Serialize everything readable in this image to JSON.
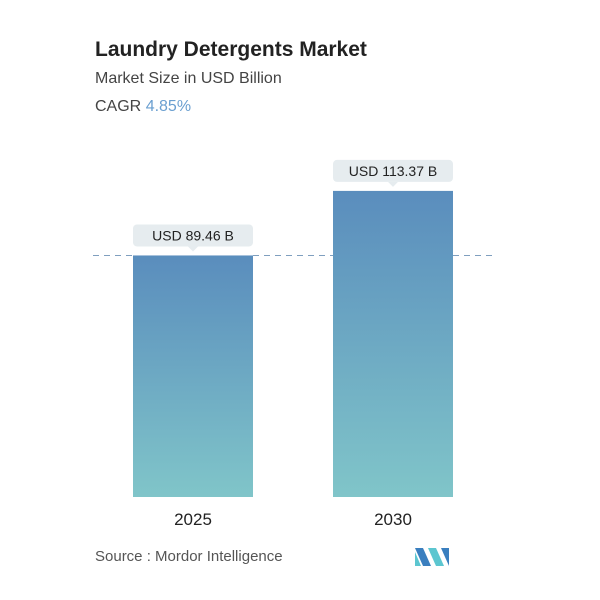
{
  "chart_data": {
    "type": "bar",
    "title": "Laundry Detergents Market",
    "subtitle": "Market Size in USD Billion",
    "cagr_label": "CAGR",
    "cagr_value": "4.85%",
    "categories": [
      "2025",
      "2030"
    ],
    "values": [
      89.46,
      113.37
    ],
    "data_labels": [
      "USD 89.46 B",
      "USD 113.37 B"
    ],
    "ylim": [
      0,
      115
    ],
    "colors": {
      "bar_top": "#5a8dbd",
      "bar_bottom": "#80c5c9",
      "cagr": "#6a9fd0",
      "label_bg": "#e6ecef",
      "dash": "#7f9fbf"
    }
  },
  "source": "Source :  Mordor Intelligence"
}
